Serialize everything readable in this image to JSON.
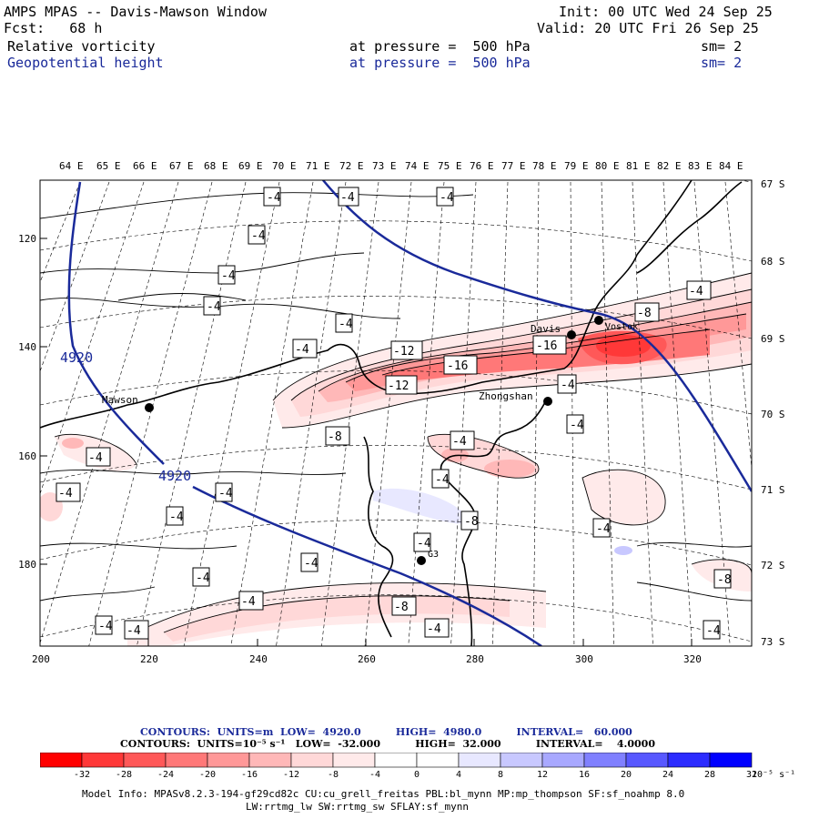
{
  "header": {
    "title": "AMPS MPAS -- Davis-Mawson Window",
    "forecast": "Fcst:   68 h",
    "init": "Init: 00 UTC Wed 24 Sep 25",
    "valid": "Valid: 20 UTC Fri 26 Sep 25",
    "field1": "Relative vorticity",
    "field1_level": "at pressure =  500 hPa",
    "field1_sm": "sm= 2",
    "field2": "Geopotential height",
    "field2_level": "at pressure =  500 hPa",
    "field2_sm": "sm= 2"
  },
  "map": {
    "top_lon_labels": [
      "64 E",
      "65 E",
      "66 E",
      "67 E",
      "68 E",
      "69 E",
      "70 E",
      "71 E",
      "72 E",
      "73 E",
      "74 E",
      "75 E",
      "76 E",
      "77 E",
      "78 E",
      "79 E",
      "80 E",
      "81 E",
      "82 E",
      "83 E",
      "84 E"
    ],
    "right_lat_labels": [
      "67 S",
      "68 S",
      "69 S",
      "70 S",
      "71 S",
      "72 S",
      "73 S"
    ],
    "left_y_ticks": [
      "120",
      "140",
      "160",
      "180"
    ],
    "bottom_x_ticks": [
      "200",
      "220",
      "240",
      "260",
      "280",
      "300",
      "320"
    ],
    "stations": [
      {
        "name": "Mawson"
      },
      {
        "name": "Davis"
      },
      {
        "name": "Zhongshan"
      },
      {
        "name": "Vostok"
      },
      {
        "name": "G3"
      }
    ],
    "height_labels": [
      "4920",
      "4920"
    ],
    "vort_labels": [
      "-4",
      "-4",
      "-4",
      "-4",
      "-4",
      "-4",
      "-4",
      "-4",
      "-4",
      "-8",
      "-12",
      "-16",
      "-16",
      "-12",
      "-8",
      "-4",
      "-4",
      "-4",
      "-4",
      "-4",
      "-4",
      "-4",
      "-4",
      "-8",
      "-4",
      "-8",
      "-4",
      "-4",
      "-4",
      "-4",
      "-8",
      "-4",
      "-4",
      "-4",
      "-4"
    ]
  },
  "contour_info": {
    "line1": "CONTOURS:  UNITS=m  LOW=  4920.0          HIGH=  4980.0          INTERVAL=   60.000",
    "line2": "CONTOURS:  UNITS=10⁻⁵ s⁻¹   LOW=  -32.000          HIGH=  32.000          INTERVAL=    4.0000"
  },
  "colorbar": {
    "colors": [
      "#ff0000",
      "#ff3838",
      "#ff5858",
      "#ff7878",
      "#ff9898",
      "#ffb8b8",
      "#ffd8d8",
      "#ffeaea",
      "#ffffff",
      "#ffffff",
      "#e8e8ff",
      "#c8c8ff",
      "#a8a8ff",
      "#8080ff",
      "#5858ff",
      "#2c2cff",
      "#0000ff"
    ],
    "labels": [
      "-32",
      "-28",
      "-24",
      "-20",
      "-16",
      "-12",
      "-8",
      "-4",
      "0",
      "4",
      "8",
      "12",
      "16",
      "20",
      "24",
      "28",
      "32"
    ],
    "units": "10⁻⁵ s⁻¹"
  },
  "model_info": {
    "line1": "Model Info: MPASv8.2.3-194-gf29cd82c CU:cu_grell_freitas PBL:bl_mynn MP:mp_thompson SF:sf_noahmp 8.0",
    "line2": "LW:rrtmg_lw SW:rrtmg_sw SFLAY:sf_mynn"
  }
}
